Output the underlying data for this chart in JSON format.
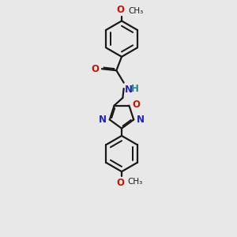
{
  "bg_color": "#e8e8e8",
  "line_color": "#1a1a1a",
  "bond_width": 1.6,
  "N_color": "#2222bb",
  "O_color": "#cc1100",
  "NH_color": "#228888",
  "font_size": 8.5,
  "small_font": 7.5,
  "figsize": [
    3.0,
    3.0
  ],
  "dpi": 100,
  "xlim": [
    -2.5,
    2.5
  ],
  "ylim": [
    -5.5,
    5.5
  ]
}
